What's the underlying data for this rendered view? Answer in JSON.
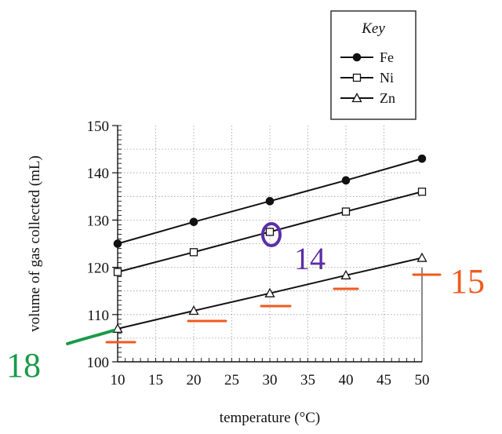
{
  "chart_data": {
    "type": "line",
    "xlabel": "temperature (°C)",
    "ylabel": "volume of gas collected (mL)",
    "xlim": [
      10,
      50
    ],
    "ylim": [
      100,
      150
    ],
    "x_ticks": [
      10,
      15,
      20,
      25,
      30,
      35,
      40,
      45,
      50
    ],
    "y_ticks": [
      100,
      110,
      120,
      130,
      140,
      150
    ],
    "x": [
      10,
      20,
      30,
      40,
      50
    ],
    "grid": true,
    "legend_position": "top-right",
    "legend_title": "Key",
    "series": [
      {
        "name": "Fe",
        "marker": "filled-circle",
        "values": [
          125,
          129.6,
          134,
          138.4,
          143
        ]
      },
      {
        "name": "Ni",
        "marker": "open-square",
        "values": [
          119,
          123.2,
          127.5,
          131.8,
          136
        ]
      },
      {
        "name": "Zn",
        "marker": "open-triangle",
        "values": [
          107,
          110.8,
          114.5,
          118.3,
          122
        ]
      }
    ],
    "annotations": {
      "handwritten_numbers": [
        "18",
        "14",
        "15"
      ],
      "colors": {
        "green": "#1a9a48",
        "purple": "#5b2fa6",
        "orange": "#f05a1e"
      }
    }
  }
}
